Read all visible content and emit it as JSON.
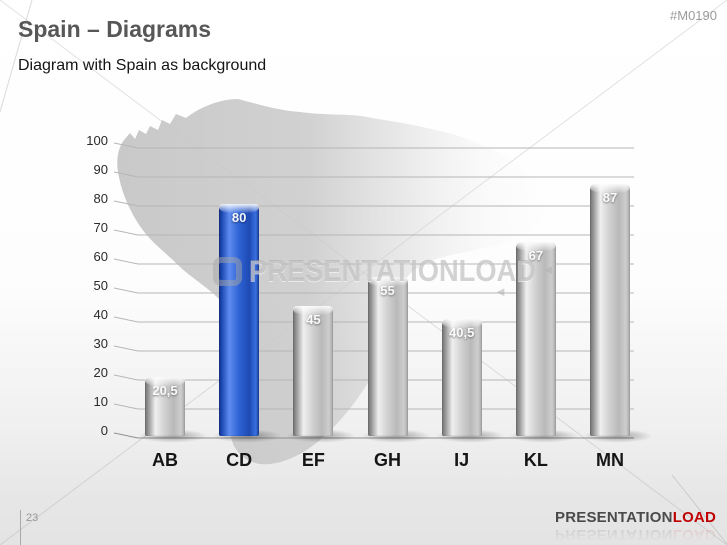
{
  "header": {
    "title": "Spain – Diagrams",
    "subtitle": "Diagram with Spain as background",
    "code": "#M0190"
  },
  "watermark": {
    "text": "PRESENTATIONLOAD",
    "logo": "presentationload-d-logo"
  },
  "footer": {
    "page_number": "23",
    "brand_gray": "PRESENTATION",
    "brand_red": "LOAD",
    "brand_red_color": "#c00000"
  },
  "chart_data": {
    "type": "bar",
    "categories": [
      "AB",
      "CD",
      "EF",
      "GH",
      "IJ",
      "KL",
      "MN"
    ],
    "values": [
      20.5,
      80,
      45,
      55,
      40.5,
      67,
      87
    ],
    "value_labels": [
      "20,5",
      "80",
      "45",
      "55",
      "40,5",
      "67",
      "87"
    ],
    "highlight_index": 1,
    "highlight_color": "#2a5fd0",
    "bar_color": "#c6c6c6",
    "title": "",
    "xlabel": "",
    "ylabel": "",
    "ylim": [
      0,
      100
    ],
    "ytick_step": 10,
    "grid": true,
    "legend": false,
    "background": "spain-map-silhouette"
  }
}
